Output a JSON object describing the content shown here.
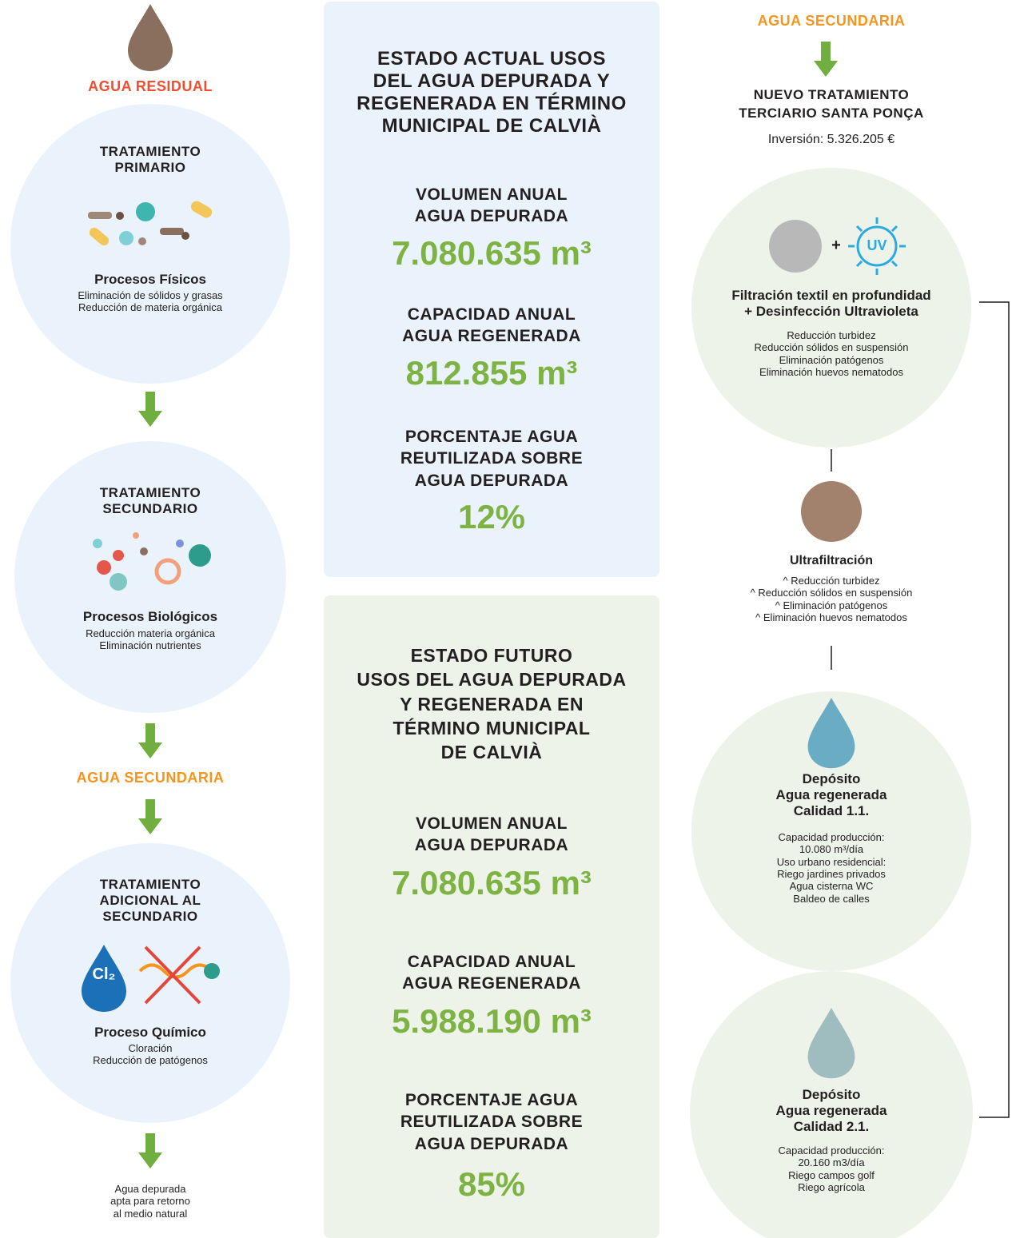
{
  "left": {
    "source_label": "AGUA RESIDUAL",
    "steps": [
      {
        "title": [
          "TRATAMIENTO",
          "PRIMARIO"
        ],
        "process": "Procesos Físicos",
        "details": [
          "Eliminación de sólidos y grasas",
          "Reducción de materia orgánica"
        ]
      },
      {
        "title": [
          "TRATAMIENTO",
          "SECUNDARIO"
        ],
        "process": "Procesos Biológicos",
        "details": [
          "Reducción materia orgánica",
          "Eliminación nutrientes"
        ]
      },
      {
        "title": [
          "TRATAMIENTO",
          "ADICIONAL AL",
          "SECUNDARIO"
        ],
        "icon_label": "Cl₂",
        "process": "Proceso Químico",
        "details": [
          "Cloración",
          "Reducción de patógenos"
        ]
      }
    ],
    "intermediate_label": "AGUA SECUNDARIA",
    "outcome": [
      "Agua depurada",
      "apta para retorno",
      "al medio natural"
    ]
  },
  "current": {
    "title": [
      "ESTADO ACTUAL USOS",
      "DEL AGUA DEPURADA Y",
      "REGENERADA EN TÉRMINO",
      "MUNICIPAL DE CALVIÀ"
    ],
    "metrics": [
      {
        "label": [
          "VOLUMEN ANUAL",
          "AGUA DEPURADA"
        ],
        "value": "7.080.635 m³"
      },
      {
        "label": [
          "CAPACIDAD ANUAL",
          "AGUA REGENERADA"
        ],
        "value": "812.855 m³"
      },
      {
        "label": [
          "PORCENTAJE AGUA",
          "REUTILIZADA SOBRE",
          "AGUA DEPURADA"
        ],
        "value": "12%"
      }
    ]
  },
  "future": {
    "title": [
      "ESTADO FUTURO",
      "USOS DEL AGUA DEPURADA",
      "Y REGENERADA EN",
      "TÉRMINO MUNICIPAL",
      "DE CALVIÀ"
    ],
    "metrics": [
      {
        "label": [
          "VOLUMEN ANUAL",
          "AGUA DEPURADA"
        ],
        "value": "7.080.635 m³"
      },
      {
        "label": [
          "CAPACIDAD ANUAL",
          "AGUA REGENERADA"
        ],
        "value": "5.988.190 m³"
      },
      {
        "label": [
          "PORCENTAJE AGUA",
          "REUTILIZADA SOBRE",
          "AGUA DEPURADA"
        ],
        "value": "85%"
      }
    ]
  },
  "right": {
    "source_label": "AGUA SECUNDARIA",
    "title": [
      "NUEVO TRATAMIENTO",
      "TERCIARIO SANTA PONÇA"
    ],
    "investment": "Inversión: 5.326.205 €",
    "filtration": {
      "plus": "+",
      "icon_label": "UV",
      "title": [
        "Filtración textil en profundidad",
        "+ Desinfección Ultravioleta"
      ],
      "details": [
        "Reducción turbidez",
        "Reducción sólidos en suspensión",
        "Eliminación patógenos",
        "Eliminación huevos nematodos"
      ]
    },
    "ultrafiltration": {
      "title": "Ultrafiltración",
      "details": [
        "^ Reducción turbidez",
        "^ Reducción sólidos en suspensión",
        "^ Eliminación patógenos",
        "^ Eliminación huevos nematodos"
      ]
    },
    "deposits": [
      {
        "title": [
          "Depósito",
          "Agua regenerada",
          "Calidad 1.1."
        ],
        "details": [
          "Capacidad producción:",
          "10.080 m³/día",
          "Uso urbano residencial:",
          "Riego jardines privados",
          "Agua cisterna WC",
          "Baldeo de calles"
        ]
      },
      {
        "title": [
          "Depósito",
          "Agua regenerada",
          "Calidad 2.1."
        ],
        "details": [
          "Capacidad producción:",
          "20.160 m3/día",
          "Riego campos golf",
          "Riego agrícola"
        ]
      }
    ]
  }
}
